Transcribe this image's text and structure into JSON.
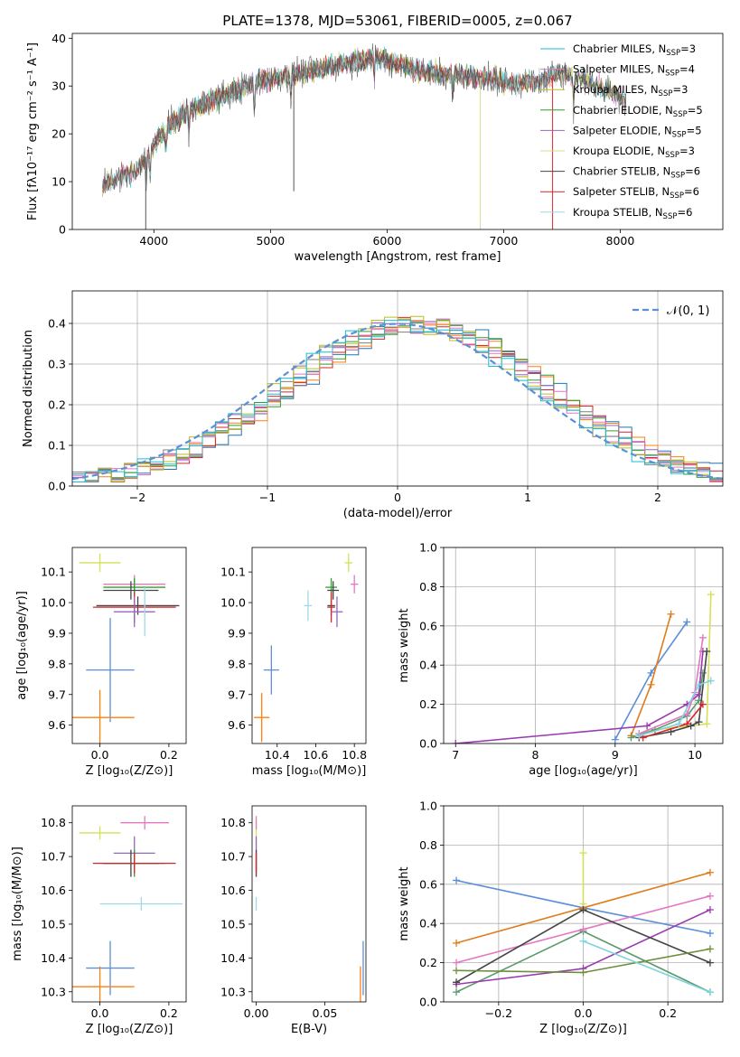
{
  "figure": {
    "title": "PLATE=1378, MJD=53061, FIBERID=0005, z=0.067",
    "colors": {
      "Chabrier MILES": "#17becf",
      "Salpeter MILES": "#e377c2",
      "Kroupa MILES": "#bcbd22",
      "Chabrier ELODIE": "#2ca02c",
      "Salpeter ELODIE": "#9467bd",
      "Kroupa ELODIE": "#dbdb8d",
      "Chabrier STELIB": "#444444",
      "Salpeter STELIB": "#d62728",
      "Kroupa STELIB": "#9edae5"
    }
  },
  "chart_data": [
    {
      "id": "spectrum",
      "type": "line",
      "title": "PLATE=1378, MJD=53061, FIBERID=0005, z=0.067",
      "xlabel": "wavelength [Angstrom, rest frame]",
      "ylabel": "Flux [fλ10⁻¹⁷ erg cm⁻² s⁻¹ A⁻¹]",
      "xlim": [
        3300,
        8880
      ],
      "ylim": [
        0,
        41
      ],
      "xticks": [
        4000,
        5000,
        6000,
        7000,
        8000
      ],
      "yticks": [
        0,
        10,
        20,
        30,
        40
      ],
      "grid": false,
      "legend": "top-right",
      "continuum": [
        [
          3560,
          9
        ],
        [
          3700,
          11
        ],
        [
          3850,
          12
        ],
        [
          3950,
          16
        ],
        [
          4100,
          21
        ],
        [
          4300,
          25
        ],
        [
          4500,
          27
        ],
        [
          4700,
          29
        ],
        [
          4900,
          31
        ],
        [
          5100,
          32
        ],
        [
          5300,
          33
        ],
        [
          5500,
          34
        ],
        [
          5700,
          35
        ],
        [
          5900,
          36
        ],
        [
          6100,
          34.5
        ],
        [
          6300,
          33
        ],
        [
          6500,
          32.5
        ],
        [
          6700,
          32
        ],
        [
          6900,
          31.5
        ],
        [
          7100,
          30.5
        ],
        [
          7300,
          31
        ],
        [
          7500,
          33
        ],
        [
          7700,
          31
        ],
        [
          7900,
          29
        ],
        [
          8050,
          27
        ]
      ],
      "series": [
        {
          "name": "Chabrier MILES, N_SSP=3",
          "legend": "Chabrier MILES, N",
          "sub": "SSP",
          "eq": "=3",
          "color": "#17becf",
          "range": [
            3560,
            8050
          ]
        },
        {
          "name": "Salpeter MILES, N_SSP=4",
          "legend": "Salpeter MILES, N",
          "sub": "SSP",
          "eq": "=4",
          "color": "#e377c2",
          "range": [
            3560,
            8050
          ]
        },
        {
          "name": "Kroupa MILES, N_SSP=3",
          "legend": "Kroupa MILES, N",
          "sub": "SSP",
          "eq": "=3",
          "color": "#bcbd22",
          "range": [
            3560,
            8050
          ]
        },
        {
          "name": "Chabrier ELODIE, N_SSP=5",
          "legend": "Chabrier ELODIE, N",
          "sub": "SSP",
          "eq": "=5",
          "color": "#2ca02c",
          "range": [
            3900,
            6800
          ]
        },
        {
          "name": "Salpeter ELODIE, N_SSP=5",
          "legend": "Salpeter ELODIE, N",
          "sub": "SSP",
          "eq": "=5",
          "color": "#9467bd",
          "range": [
            3900,
            6800
          ]
        },
        {
          "name": "Kroupa ELODIE, N_SSP=3",
          "legend": "Kroupa ELODIE, N",
          "sub": "SSP",
          "eq": "=3",
          "color": "#dbdb8d",
          "range": [
            3900,
            6800
          ]
        },
        {
          "name": "Chabrier STELIB, N_SSP=6",
          "legend": "Chabrier STELIB, N",
          "sub": "SSP",
          "eq": "=6",
          "color": "#444444",
          "range": [
            3560,
            8050
          ]
        },
        {
          "name": "Salpeter STELIB, N_SSP=6",
          "legend": "Salpeter STELIB, N",
          "sub": "SSP",
          "eq": "=6",
          "color": "#d62728",
          "range": [
            3560,
            7450
          ]
        },
        {
          "name": "Kroupa STELIB, N_SSP=6",
          "legend": "Kroupa STELIB, N",
          "sub": "SSP",
          "eq": "=6",
          "color": "#9edae5",
          "range": [
            3560,
            7450
          ]
        }
      ]
    },
    {
      "id": "residuals",
      "type": "histogram",
      "xlabel": "(data-model)/error",
      "ylabel": "Normed distribution",
      "xlim": [
        -2.5,
        2.5
      ],
      "ylim": [
        0,
        0.48
      ],
      "xticks": [
        -2,
        -1,
        0,
        1,
        2
      ],
      "yticks": [
        0.0,
        0.1,
        0.2,
        0.3,
        0.4
      ],
      "grid": true,
      "legend": "top-right",
      "reference_curve": {
        "name": "N(0,1)",
        "label": "𝒩(0, 1)",
        "color": "#5b8fd9",
        "mean": 0,
        "sigma": 1
      },
      "bin_width": 0.1,
      "colors": [
        "#1f77b4",
        "#ff7f0e",
        "#2ca02c",
        "#d62728",
        "#9467bd",
        "#e377c2",
        "#7f7f7f",
        "#bcbd22",
        "#17becf"
      ]
    },
    {
      "id": "age_vs_Z",
      "type": "errorbar",
      "xlabel": "Z [log₁₀(Z/Z⊙)]",
      "ylabel": "age  [log₁₀(age/yr)]",
      "xlim": [
        -0.08,
        0.25
      ],
      "ylim": [
        9.54,
        10.18
      ],
      "xticks": [
        0.0,
        0.2
      ],
      "yticks": [
        9.6,
        9.7,
        9.8,
        9.9,
        10.0,
        10.1
      ],
      "points": [
        {
          "x": 0.0,
          "y": 10.13,
          "xerr": 0.06,
          "yerr": 0.03,
          "color": "#d4e157"
        },
        {
          "x": 0.1,
          "y": 10.06,
          "xerr": 0.09,
          "yerr": 0.03,
          "color": "#e377c2"
        },
        {
          "x": 0.1,
          "y": 10.05,
          "xerr": 0.09,
          "yerr": 0.03,
          "color": "#2ca02c"
        },
        {
          "x": 0.09,
          "y": 10.04,
          "xerr": 0.08,
          "yerr": 0.03,
          "color": "#444444"
        },
        {
          "x": 0.11,
          "y": 9.99,
          "xerr": 0.12,
          "yerr": 0.03,
          "color": "#444444"
        },
        {
          "x": 0.1,
          "y": 9.985,
          "xerr": 0.12,
          "yerr": 0.05,
          "color": "#d62728"
        },
        {
          "x": 0.1,
          "y": 9.97,
          "xerr": 0.06,
          "yerr": 0.05,
          "color": "#9467bd"
        },
        {
          "x": 0.13,
          "y": 9.97,
          "xerr": 0.0,
          "yerr": 0.08,
          "color": "#9edae5"
        },
        {
          "x": 0.03,
          "y": 9.78,
          "xerr": 0.07,
          "yerr": 0.17,
          "color": "#5b8fd9"
        },
        {
          "x": 0.0,
          "y": 9.625,
          "xerr": 0.1,
          "yerr": 0.09,
          "color": "#ff7f0e"
        }
      ]
    },
    {
      "id": "age_vs_mass",
      "type": "errorbar",
      "xlabel": "mass [log₁₀(M/M⊙)]",
      "ylabel": "",
      "xlim": [
        10.27,
        10.86
      ],
      "ylim": [
        9.54,
        10.18
      ],
      "xticks": [
        10.4,
        10.6,
        10.8
      ],
      "yticks": [
        9.6,
        9.7,
        9.8,
        9.9,
        10.0,
        10.1
      ],
      "points": [
        {
          "x": 10.77,
          "y": 10.13,
          "xerr": 0.02,
          "yerr": 0.03,
          "color": "#d4e157"
        },
        {
          "x": 10.8,
          "y": 10.06,
          "xerr": 0.02,
          "yerr": 0.03,
          "color": "#e377c2"
        },
        {
          "x": 10.68,
          "y": 10.05,
          "xerr": 0.03,
          "yerr": 0.03,
          "color": "#2ca02c"
        },
        {
          "x": 10.69,
          "y": 10.04,
          "xerr": 0.03,
          "yerr": 0.03,
          "color": "#444444"
        },
        {
          "x": 10.68,
          "y": 9.99,
          "xerr": 0.02,
          "yerr": 0.03,
          "color": "#444444"
        },
        {
          "x": 10.68,
          "y": 9.985,
          "xerr": 0.02,
          "yerr": 0.05,
          "color": "#d62728"
        },
        {
          "x": 10.71,
          "y": 9.97,
          "xerr": 0.03,
          "yerr": 0.05,
          "color": "#9467bd"
        },
        {
          "x": 10.56,
          "y": 9.99,
          "xerr": 0.02,
          "yerr": 0.05,
          "color": "#9edae5"
        },
        {
          "x": 10.37,
          "y": 9.78,
          "xerr": 0.04,
          "yerr": 0.08,
          "color": "#5b8fd9"
        },
        {
          "x": 10.32,
          "y": 9.625,
          "xerr": 0.04,
          "yerr": 0.08,
          "color": "#ff7f0e"
        }
      ]
    },
    {
      "id": "weight_vs_age",
      "type": "line",
      "xlabel": "age  [log₁₀(age/yr)]",
      "ylabel": "mass weight",
      "xlim": [
        6.85,
        10.35
      ],
      "ylim": [
        0,
        1
      ],
      "xticks": [
        7,
        8,
        9,
        10
      ],
      "yticks": [
        0.0,
        0.2,
        0.4,
        0.6,
        0.8,
        1.0
      ],
      "grid": true,
      "series": [
        {
          "name": "Chabrier MILES",
          "color": "#5b8fd9",
          "x": [
            9.0,
            9.45,
            9.9
          ],
          "y": [
            0.02,
            0.36,
            0.62
          ]
        },
        {
          "name": "Salpeter MILES",
          "color": "#e07b1a",
          "x": [
            9.2,
            9.45,
            9.7
          ],
          "y": [
            0.04,
            0.3,
            0.66
          ]
        },
        {
          "name": "Kroupa MILES",
          "color": "#d4e157",
          "x": [
            9.3,
            9.5,
            10.15,
            10.2
          ],
          "y": [
            0.05,
            0.07,
            0.1,
            0.76
          ]
        },
        {
          "name": "Chabrier ELODIE",
          "color": "#5a9a6a",
          "x": [
            9.2,
            9.5,
            9.9,
            10.05,
            10.1
          ],
          "y": [
            0.03,
            0.07,
            0.14,
            0.22,
            0.36
          ]
        },
        {
          "name": "Salpeter ELODIE",
          "color": "#9a3ab0",
          "x": [
            7.0,
            9.4,
            9.9,
            10.05,
            10.1
          ],
          "y": [
            0.0,
            0.09,
            0.2,
            0.25,
            0.47
          ]
        },
        {
          "name": "Kroupa ELODIE",
          "color": "#e377c2",
          "x": [
            9.3,
            9.9,
            10.0,
            10.1
          ],
          "y": [
            0.05,
            0.15,
            0.26,
            0.54
          ]
        },
        {
          "name": "Chabrier STELIB",
          "color": "#444444",
          "x": [
            9.3,
            9.7,
            9.95,
            10.05,
            10.15
          ],
          "y": [
            0.03,
            0.06,
            0.09,
            0.11,
            0.47
          ]
        },
        {
          "name": "Salpeter STELIB",
          "color": "#d62728",
          "x": [
            9.35,
            9.9,
            10.1
          ],
          "y": [
            0.03,
            0.1,
            0.2
          ]
        },
        {
          "name": "Kroupa STELIB",
          "color": "#7fd3dc",
          "x": [
            9.3,
            9.8,
            10.05,
            10.2
          ],
          "y": [
            0.04,
            0.1,
            0.3,
            0.32
          ]
        }
      ]
    },
    {
      "id": "mass_vs_Z",
      "type": "errorbar",
      "xlabel": "Z [log₁₀(Z/Z⊙)]",
      "ylabel": "mass [log₁₀(M/M⊙)]",
      "xlim": [
        -0.08,
        0.25
      ],
      "ylim": [
        10.27,
        10.85
      ],
      "xticks": [
        0.0,
        0.2
      ],
      "yticks": [
        10.3,
        10.4,
        10.5,
        10.6,
        10.7,
        10.8
      ],
      "points": [
        {
          "x": 0.0,
          "y": 10.77,
          "xerr": 0.06,
          "yerr": 0.02,
          "color": "#d4e157"
        },
        {
          "x": 0.13,
          "y": 10.8,
          "xerr": 0.07,
          "yerr": 0.02,
          "color": "#e377c2"
        },
        {
          "x": 0.1,
          "y": 10.71,
          "xerr": 0.06,
          "yerr": 0.05,
          "color": "#9467bd"
        },
        {
          "x": 0.1,
          "y": 10.68,
          "xerr": 0.09,
          "yerr": 0.04,
          "color": "#2ca02c"
        },
        {
          "x": 0.09,
          "y": 10.68,
          "xerr": 0.08,
          "yerr": 0.04,
          "color": "#444444"
        },
        {
          "x": 0.1,
          "y": 10.68,
          "xerr": 0.12,
          "yerr": 0.03,
          "color": "#d62728"
        },
        {
          "x": 0.12,
          "y": 10.56,
          "xerr": 0.12,
          "yerr": 0.02,
          "color": "#9edae5"
        },
        {
          "x": 0.03,
          "y": 10.37,
          "xerr": 0.07,
          "yerr": 0.08,
          "color": "#5b8fd9"
        },
        {
          "x": 0.0,
          "y": 10.315,
          "xerr": 0.1,
          "yerr": 0.06,
          "color": "#ff7f0e"
        }
      ]
    },
    {
      "id": "mass_vs_ebv",
      "type": "errorbar",
      "xlabel": "E(B-V)",
      "ylabel": "",
      "xlim": [
        -0.003,
        0.08
      ],
      "ylim": [
        10.27,
        10.85
      ],
      "xticks": [
        0.0,
        0.05
      ],
      "yticks": [
        10.3,
        10.4,
        10.5,
        10.6,
        10.7,
        10.8
      ],
      "points": [
        {
          "x": 0.0,
          "y": 10.77,
          "xerr": 0.0,
          "yerr": 0.04,
          "color": "#d4e157"
        },
        {
          "x": 0.0,
          "y": 10.8,
          "xerr": 0.0,
          "yerr": 0.02,
          "color": "#e377c2"
        },
        {
          "x": 0.0,
          "y": 10.71,
          "xerr": 0.0,
          "yerr": 0.05,
          "color": "#9467bd"
        },
        {
          "x": 0.0,
          "y": 10.68,
          "xerr": 0.0,
          "yerr": 0.04,
          "color": "#444444"
        },
        {
          "x": 0.0,
          "y": 10.68,
          "xerr": 0.0,
          "yerr": 0.03,
          "color": "#d62728"
        },
        {
          "x": 0.0,
          "y": 10.56,
          "xerr": 0.0,
          "yerr": 0.02,
          "color": "#9edae5"
        },
        {
          "x": 0.078,
          "y": 10.37,
          "xerr": 0.0,
          "yerr": 0.08,
          "color": "#5b8fd9"
        },
        {
          "x": 0.076,
          "y": 10.315,
          "xerr": 0.0,
          "yerr": 0.06,
          "color": "#ff7f0e"
        }
      ]
    },
    {
      "id": "weight_vs_Z",
      "type": "line",
      "xlabel": "Z [log₁₀(Z/Z⊙)]",
      "ylabel": "mass weight",
      "xlim": [
        -0.33,
        0.33
      ],
      "ylim": [
        0,
        1
      ],
      "xticks": [
        -0.2,
        0.0,
        0.2
      ],
      "yticks": [
        0.0,
        0.2,
        0.4,
        0.6,
        0.8,
        1.0
      ],
      "grid": true,
      "series": [
        {
          "name": "Chabrier MILES",
          "color": "#5b8fd9",
          "x": [
            -0.3,
            0.0,
            0.3
          ],
          "y": [
            0.62,
            0.48,
            0.35
          ]
        },
        {
          "name": "Salpeter MILES",
          "color": "#e07b1a",
          "x": [
            -0.3,
            0.0,
            0.3
          ],
          "y": [
            0.3,
            0.48,
            0.66
          ]
        },
        {
          "name": "Kroupa MILES",
          "color": "#d4e157",
          "x": [
            0.0,
            0.0
          ],
          "y": [
            0.5,
            0.76
          ]
        },
        {
          "name": "Chabrier ELODIE",
          "color": "#5a9a6a",
          "x": [
            -0.3,
            0.0,
            0.3
          ],
          "y": [
            0.05,
            0.36,
            0.05
          ]
        },
        {
          "name": "Salpeter ELODIE",
          "color": "#9a3ab0",
          "x": [
            -0.3,
            0.0,
            0.3
          ],
          "y": [
            0.09,
            0.17,
            0.47
          ]
        },
        {
          "name": "Kroupa ELODIE",
          "color": "#e377c2",
          "x": [
            -0.3,
            0.0,
            0.3
          ],
          "y": [
            0.2,
            0.37,
            0.54
          ]
        },
        {
          "name": "Chabrier STELIB",
          "color": "#444444",
          "x": [
            -0.3,
            0.0,
            0.3
          ],
          "y": [
            0.1,
            0.47,
            0.2
          ]
        },
        {
          "name": "Salpeter STELIB",
          "color": "#6b8f3a",
          "x": [
            -0.3,
            0.0,
            0.3
          ],
          "y": [
            0.16,
            0.15,
            0.27
          ]
        },
        {
          "name": "Kroupa STELIB",
          "color": "#7fd3dc",
          "x": [
            0.0,
            0.3
          ],
          "y": [
            0.31,
            0.05
          ]
        }
      ]
    }
  ]
}
